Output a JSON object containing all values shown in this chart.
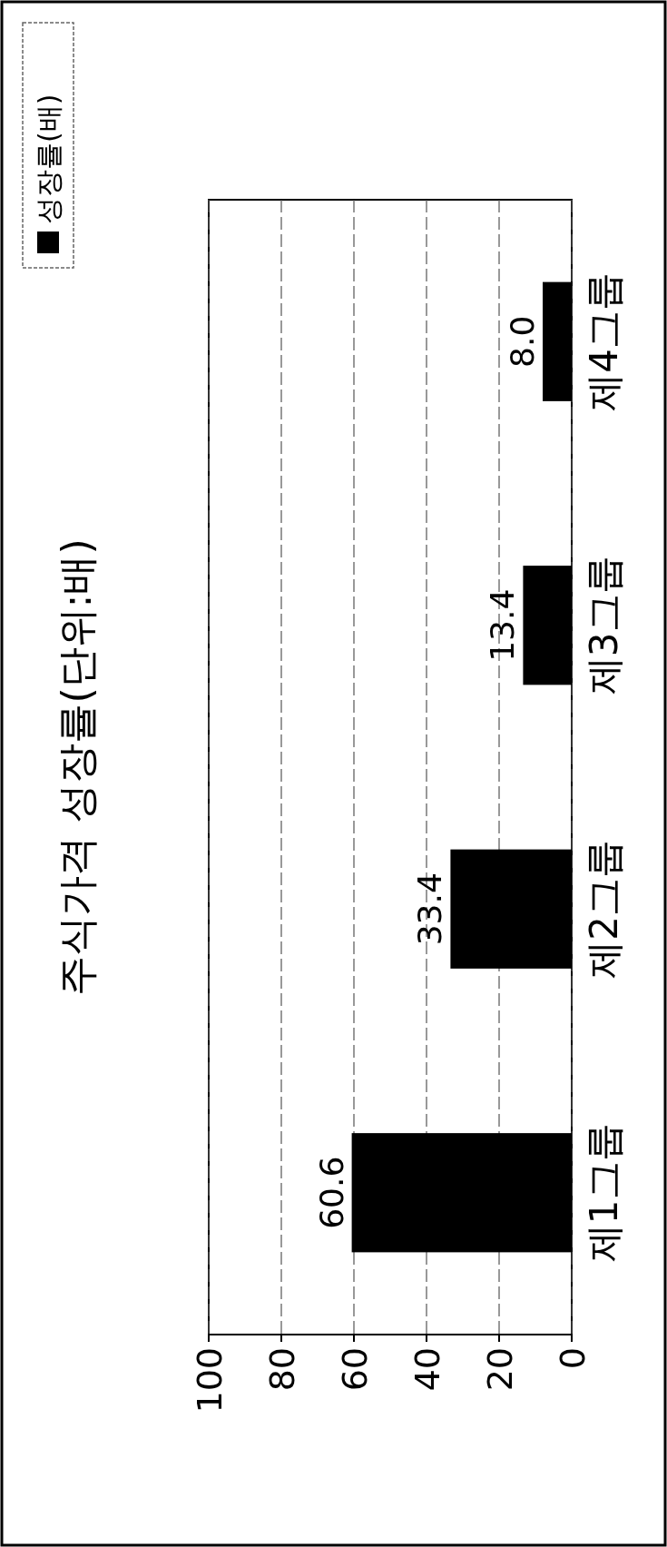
{
  "chart_data": {
    "type": "bar",
    "orientation": "horizontal",
    "title": "주식가격 성장률(단위:배)",
    "categories": [
      "제4그룹",
      "제3그룹",
      "제2그룹",
      "제1그룹"
    ],
    "series": [
      {
        "name": "성장률(배)",
        "color": "#000000",
        "values": [
          8.0,
          13.4,
          33.4,
          60.6
        ],
        "value_labels": [
          "8.0",
          "13.4",
          "33.4",
          "60.6"
        ]
      }
    ],
    "xlim": [
      100,
      0
    ],
    "xticks": [
      100,
      80,
      60,
      40,
      20,
      0
    ],
    "grid": "x",
    "legend": "top left"
  }
}
